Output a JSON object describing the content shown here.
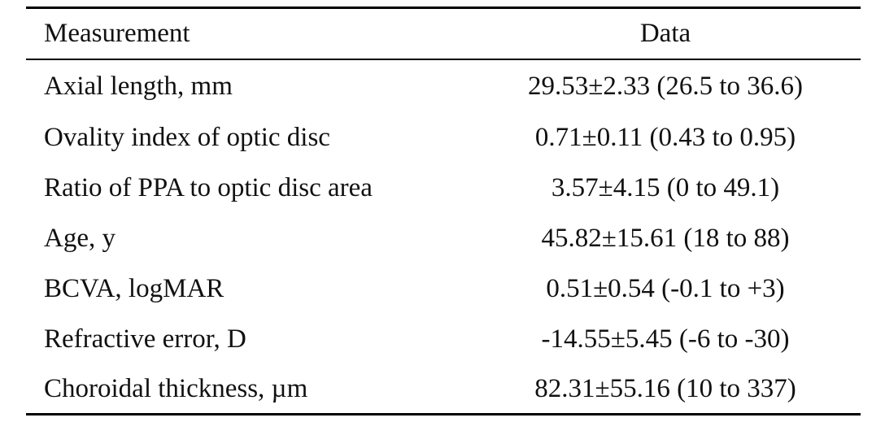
{
  "table": {
    "headers": [
      "Measurement",
      "Data"
    ],
    "rows": [
      {
        "measurement": "Axial length, mm",
        "data": "29.53±2.33 (26.5 to 36.6)"
      },
      {
        "measurement": "Ovality index of optic disc",
        "data": "0.71±0.11 (0.43 to 0.95)"
      },
      {
        "measurement": "Ratio of PPA to optic disc area",
        "data": "3.57±4.15 (0 to 49.1)"
      },
      {
        "measurement": "Age, y",
        "data": "45.82±15.61 (18 to 88)"
      },
      {
        "measurement": "BCVA, logMAR",
        "data": "0.51±0.54 (-0.1 to +3)"
      },
      {
        "measurement": "Refractive error, D",
        "data": "-14.55±5.45 (-6 to -30)"
      },
      {
        "measurement": "Choroidal thickness, µm",
        "data": "82.31±55.16 (10 to 337)"
      }
    ]
  }
}
